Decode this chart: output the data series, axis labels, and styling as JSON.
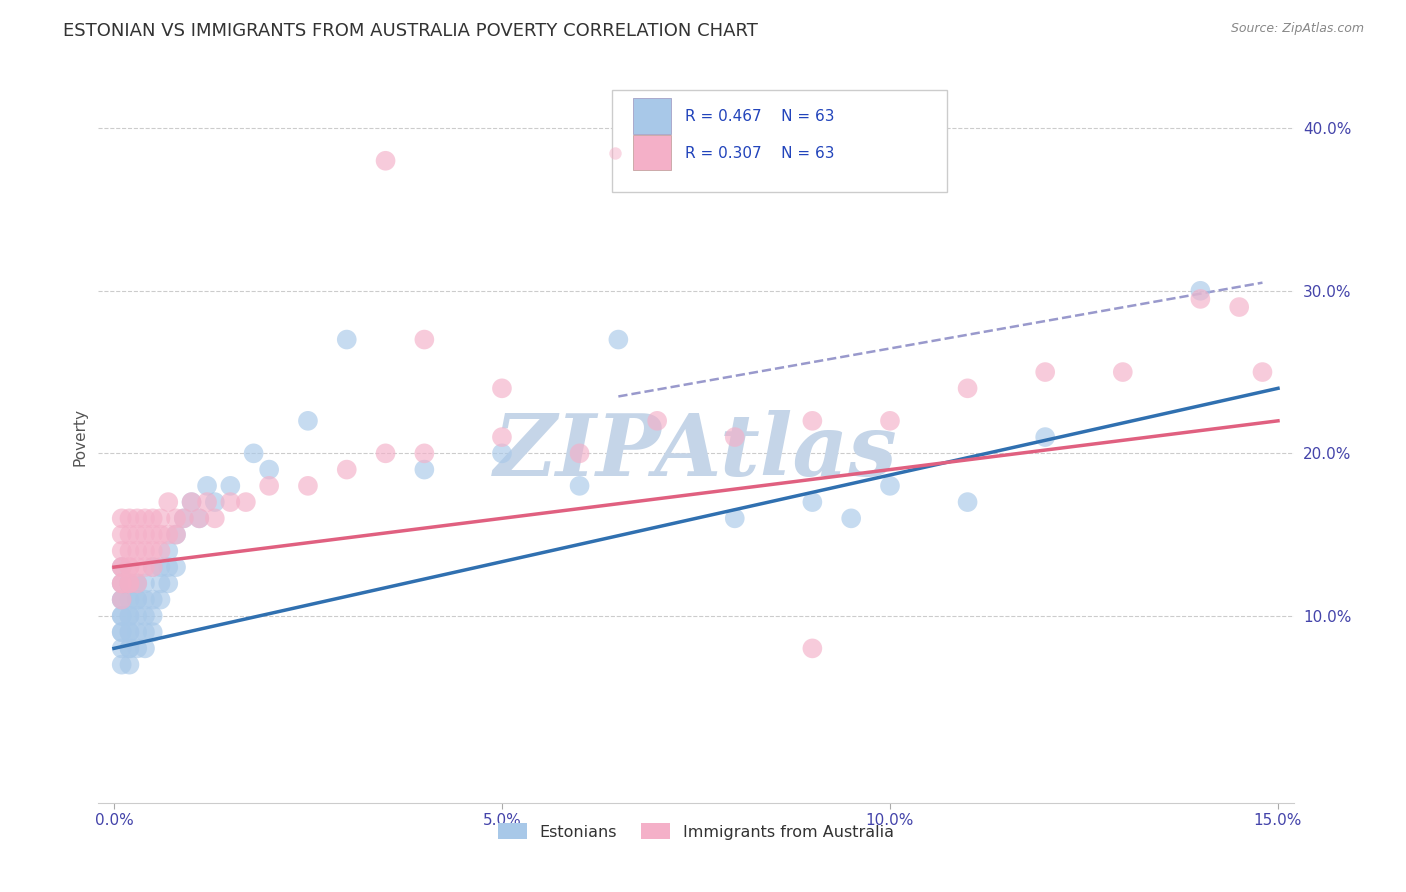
{
  "title": "ESTONIAN VS IMMIGRANTS FROM AUSTRALIA POVERTY CORRELATION CHART",
  "source": "Source: ZipAtlas.com",
  "ylabel": "Poverty",
  "xlim": [
    -0.002,
    0.152
  ],
  "ylim": [
    -0.015,
    0.435
  ],
  "yticks": [
    0.1,
    0.2,
    0.3,
    0.4
  ],
  "ytick_labels": [
    "10.0%",
    "20.0%",
    "30.0%",
    "40.0%"
  ],
  "xticks": [
    0.0,
    0.05,
    0.1,
    0.15
  ],
  "xtick_labels": [
    "0.0%",
    "5.0%",
    "10.0%",
    "15.0%"
  ],
  "color_blue": "#a8c8e8",
  "color_pink": "#f4b0c8",
  "color_blue_line": "#3070b0",
  "color_pink_line": "#e06080",
  "color_dash": "#9999cc",
  "watermark": "ZIPAtlas",
  "watermark_color": "#c5d5e8",
  "background_color": "#ffffff",
  "title_fontsize": 13,
  "label_fontsize": 11,
  "tick_fontsize": 11,
  "blue_line_x0": 0.0,
  "blue_line_y0": 0.08,
  "blue_line_x1": 0.15,
  "blue_line_y1": 0.24,
  "pink_line_x0": 0.0,
  "pink_line_y0": 0.13,
  "pink_line_x1": 0.15,
  "pink_line_y1": 0.22,
  "dash_line_x0": 0.065,
  "dash_line_y0": 0.235,
  "dash_line_x1": 0.148,
  "dash_line_y1": 0.305,
  "estonians_x": [
    0.001,
    0.001,
    0.001,
    0.001,
    0.001,
    0.001,
    0.001,
    0.001,
    0.001,
    0.001,
    0.002,
    0.002,
    0.002,
    0.002,
    0.002,
    0.002,
    0.002,
    0.002,
    0.002,
    0.003,
    0.003,
    0.003,
    0.003,
    0.003,
    0.003,
    0.004,
    0.004,
    0.004,
    0.004,
    0.004,
    0.005,
    0.005,
    0.005,
    0.005,
    0.006,
    0.006,
    0.006,
    0.007,
    0.007,
    0.007,
    0.008,
    0.008,
    0.009,
    0.01,
    0.011,
    0.012,
    0.013,
    0.015,
    0.018,
    0.02,
    0.025,
    0.03,
    0.04,
    0.05,
    0.06,
    0.065,
    0.08,
    0.09,
    0.095,
    0.1,
    0.11,
    0.12,
    0.14
  ],
  "estonians_y": [
    0.12,
    0.1,
    0.09,
    0.11,
    0.08,
    0.13,
    0.07,
    0.11,
    0.1,
    0.09,
    0.1,
    0.09,
    0.11,
    0.08,
    0.12,
    0.07,
    0.1,
    0.09,
    0.08,
    0.11,
    0.1,
    0.09,
    0.12,
    0.08,
    0.11,
    0.12,
    0.1,
    0.09,
    0.11,
    0.08,
    0.13,
    0.1,
    0.09,
    0.11,
    0.13,
    0.11,
    0.12,
    0.14,
    0.12,
    0.13,
    0.15,
    0.13,
    0.16,
    0.17,
    0.16,
    0.18,
    0.17,
    0.18,
    0.2,
    0.19,
    0.22,
    0.27,
    0.19,
    0.2,
    0.18,
    0.27,
    0.16,
    0.17,
    0.16,
    0.18,
    0.17,
    0.21,
    0.3
  ],
  "immigrants_x": [
    0.001,
    0.001,
    0.001,
    0.001,
    0.001,
    0.001,
    0.001,
    0.001,
    0.002,
    0.002,
    0.002,
    0.002,
    0.002,
    0.002,
    0.002,
    0.003,
    0.003,
    0.003,
    0.003,
    0.003,
    0.004,
    0.004,
    0.004,
    0.004,
    0.005,
    0.005,
    0.005,
    0.005,
    0.006,
    0.006,
    0.006,
    0.007,
    0.007,
    0.008,
    0.008,
    0.009,
    0.01,
    0.011,
    0.012,
    0.013,
    0.015,
    0.017,
    0.02,
    0.025,
    0.03,
    0.035,
    0.04,
    0.05,
    0.06,
    0.07,
    0.08,
    0.09,
    0.1,
    0.11,
    0.12,
    0.13,
    0.14,
    0.145,
    0.148,
    0.035,
    0.04,
    0.05,
    0.09
  ],
  "immigrants_y": [
    0.14,
    0.13,
    0.12,
    0.15,
    0.11,
    0.13,
    0.16,
    0.12,
    0.14,
    0.13,
    0.15,
    0.12,
    0.16,
    0.13,
    0.12,
    0.15,
    0.13,
    0.14,
    0.12,
    0.16,
    0.15,
    0.14,
    0.16,
    0.13,
    0.15,
    0.14,
    0.16,
    0.13,
    0.15,
    0.14,
    0.16,
    0.15,
    0.17,
    0.16,
    0.15,
    0.16,
    0.17,
    0.16,
    0.17,
    0.16,
    0.17,
    0.17,
    0.18,
    0.18,
    0.19,
    0.2,
    0.2,
    0.21,
    0.2,
    0.22,
    0.21,
    0.22,
    0.22,
    0.24,
    0.25,
    0.25,
    0.295,
    0.29,
    0.25,
    0.38,
    0.27,
    0.24,
    0.08
  ]
}
